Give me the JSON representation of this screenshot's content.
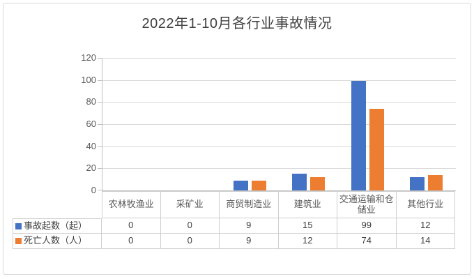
{
  "chart_data": {
    "type": "bar",
    "title": "2022年1-10月各行业事故情况",
    "categories": [
      "农林牧渔业",
      "采矿业",
      "商贸制造业",
      "建筑业",
      "交通运输和仓储业",
      "其他行业"
    ],
    "series": [
      {
        "name": "事故起数（起）",
        "color": "#4472c4",
        "values": [
          0,
          0,
          9,
          15,
          99,
          12
        ]
      },
      {
        "name": "死亡人数（人）",
        "color": "#ed7d31",
        "values": [
          0,
          0,
          9,
          12,
          74,
          14
        ]
      }
    ],
    "ylim": [
      0,
      120
    ],
    "yticks": [
      0,
      20,
      40,
      60,
      80,
      100,
      120
    ],
    "grid": true,
    "legend_position": "data-table-left",
    "data_table_shown": true
  },
  "colors": {
    "series_blue": "#4472c4",
    "series_orange": "#ed7d31",
    "gridline": "#d9d9d9",
    "axis_line": "#bfbfbf",
    "table_border": "#d0cece",
    "text_primary": "#404040",
    "text_secondary": "#595959",
    "frame_border": "#d9d9d9"
  }
}
